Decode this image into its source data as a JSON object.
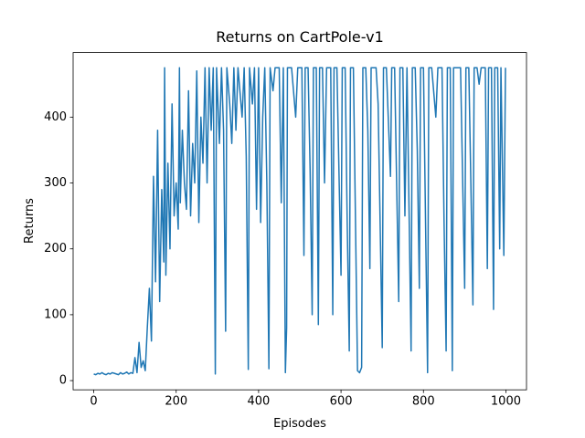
{
  "chart_data": {
    "type": "line",
    "title": "Returns on CartPole-v1",
    "xlabel": "Episodes",
    "ylabel": "Returns",
    "color": "#1f77b4",
    "x": [
      0,
      5,
      10,
      15,
      20,
      25,
      30,
      35,
      40,
      45,
      50,
      55,
      60,
      65,
      70,
      75,
      80,
      85,
      90,
      95,
      100,
      105,
      110,
      115,
      120,
      125,
      130,
      135,
      140,
      145,
      150,
      155,
      160,
      165,
      170,
      172,
      175,
      180,
      185,
      190,
      195,
      200,
      205,
      208,
      210,
      215,
      220,
      225,
      230,
      235,
      240,
      245,
      250,
      255,
      260,
      265,
      270,
      275,
      280,
      285,
      290,
      295,
      298,
      305,
      310,
      315,
      320,
      323,
      330,
      335,
      340,
      345,
      350,
      360,
      365,
      370,
      375,
      378,
      385,
      390,
      395,
      400,
      405,
      410,
      415,
      420,
      425,
      428,
      435,
      440,
      450,
      455,
      460,
      465,
      468,
      470,
      480,
      490,
      495,
      505,
      510,
      513,
      520,
      525,
      530,
      533,
      540,
      545,
      548,
      555,
      560,
      565,
      575,
      580,
      583,
      590,
      600,
      603,
      610,
      615,
      620,
      623,
      630,
      640,
      645,
      650,
      653,
      660,
      665,
      670,
      673,
      685,
      690,
      700,
      703,
      710,
      720,
      723,
      730,
      740,
      743,
      750,
      755,
      760,
      770,
      773,
      780,
      785,
      790,
      793,
      800,
      810,
      813,
      820,
      830,
      835,
      845,
      850,
      855,
      858,
      865,
      870,
      873,
      880,
      890,
      900,
      903,
      910,
      915,
      920,
      923,
      930,
      935,
      940,
      945,
      950,
      955,
      958,
      965,
      970,
      973,
      980,
      985,
      988,
      995,
      999
    ],
    "values": [
      10,
      9,
      11,
      10,
      12,
      10,
      9,
      11,
      10,
      12,
      11,
      10,
      9,
      12,
      10,
      11,
      13,
      10,
      12,
      11,
      35,
      12,
      58,
      20,
      30,
      15,
      80,
      140,
      60,
      310,
      150,
      380,
      120,
      290,
      180,
      475,
      160,
      330,
      200,
      420,
      250,
      300,
      230,
      475,
      270,
      380,
      300,
      260,
      440,
      250,
      360,
      300,
      470,
      240,
      400,
      330,
      475,
      300,
      475,
      380,
      475,
      10,
      475,
      360,
      475,
      380,
      75,
      475,
      420,
      360,
      475,
      380,
      475,
      400,
      475,
      340,
      17,
      475,
      420,
      475,
      260,
      475,
      240,
      400,
      475,
      300,
      18,
      475,
      440,
      475,
      475,
      270,
      475,
      12,
      80,
      475,
      475,
      400,
      475,
      475,
      190,
      475,
      475,
      320,
      100,
      475,
      475,
      85,
      475,
      475,
      300,
      475,
      475,
      100,
      475,
      475,
      160,
      475,
      475,
      240,
      45,
      475,
      475,
      15,
      12,
      20,
      475,
      475,
      380,
      170,
      475,
      475,
      420,
      50,
      475,
      475,
      310,
      475,
      475,
      120,
      475,
      475,
      250,
      475,
      45,
      475,
      475,
      350,
      140,
      475,
      475,
      12,
      475,
      475,
      400,
      475,
      475,
      240,
      45,
      475,
      475,
      15,
      475,
      475,
      475,
      140,
      475,
      475,
      300,
      115,
      475,
      475,
      450,
      475,
      475,
      475,
      170,
      475,
      475,
      108,
      475,
      475,
      200,
      475,
      190,
      475
    ],
    "xlim": [
      -50,
      1050
    ],
    "ylim": [
      -14,
      498
    ],
    "xticks": [
      0,
      200,
      400,
      600,
      800,
      1000
    ],
    "yticks": [
      0,
      100,
      200,
      300,
      400
    ]
  }
}
